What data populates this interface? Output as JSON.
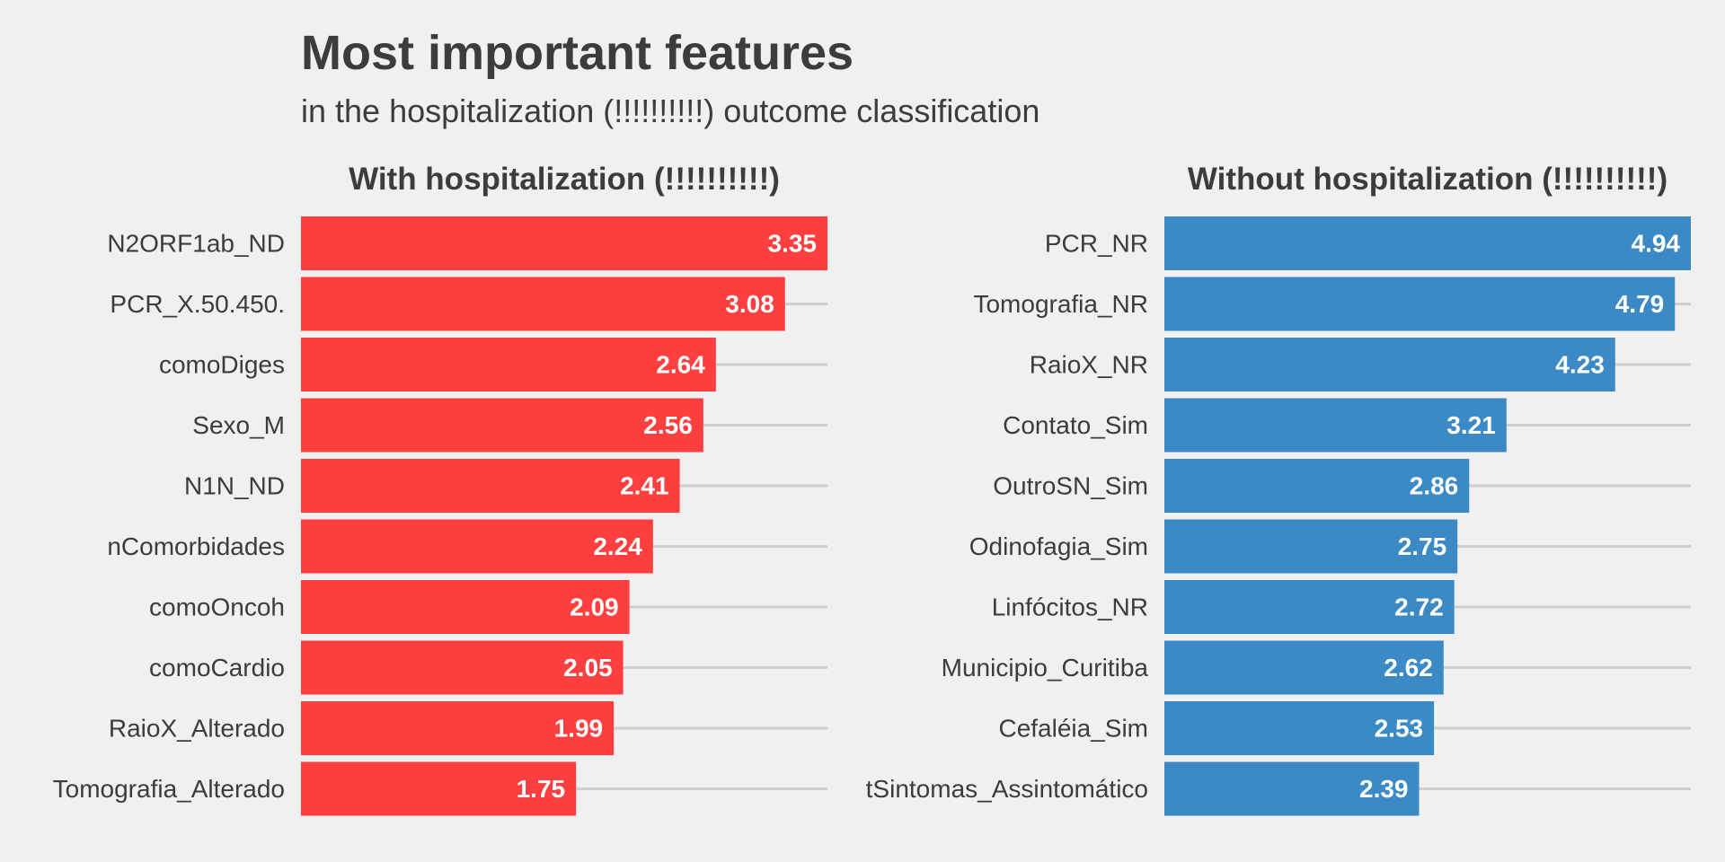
{
  "title": "Most important features",
  "subtitle": "in the hospitalization (!!!!!!!!!!) outcome classification",
  "colors": {
    "background": "#f0f0f0",
    "with_hospitalization": "#fd3f3f",
    "without_hospitalization": "#3b8ac6",
    "text": "#3c3c3c",
    "value_label": "#ffffff",
    "grid": "#cfcfcf"
  },
  "chart_data": [
    {
      "type": "bar",
      "orientation": "horizontal",
      "facet_title": "With hospitalization (!!!!!!!!!!)",
      "color": "#fd3f3f",
      "grid": true,
      "xlim": [
        0,
        3.35
      ],
      "categories": [
        "N2ORF1ab_ND",
        "PCR_X.50.450.",
        "comoDiges",
        "Sexo_M",
        "N1N_ND",
        "nComorbidades",
        "comoOncoh",
        "comoCardio",
        "RaioX_Alterado",
        "Tomografia_Alterado"
      ],
      "values": [
        3.35,
        3.08,
        2.64,
        2.56,
        2.41,
        2.24,
        2.09,
        2.05,
        1.99,
        1.75
      ],
      "value_labels": [
        "3.35",
        "3.08",
        "2.64",
        "2.56",
        "2.41",
        "2.24",
        "2.09",
        "2.05",
        "1.99",
        "1.75"
      ]
    },
    {
      "type": "bar",
      "orientation": "horizontal",
      "facet_title": "Without hospitalization (!!!!!!!!!!)",
      "color": "#3b8ac6",
      "grid": true,
      "xlim": [
        0,
        4.94
      ],
      "categories": [
        "PCR_NR",
        "Tomografia_NR",
        "RaioX_NR",
        "Contato_Sim",
        "OutroSN_Sim",
        "Odinofagia_Sim",
        "Linfócitos_NR",
        "Municipio_Curitiba",
        "Cefaléia_Sim",
        "tSintomas_Assintomático"
      ],
      "values": [
        4.94,
        4.79,
        4.23,
        3.21,
        2.86,
        2.75,
        2.72,
        2.62,
        2.53,
        2.39
      ],
      "value_labels": [
        "4.94",
        "4.79",
        "4.23",
        "3.21",
        "2.86",
        "2.75",
        "2.72",
        "2.62",
        "2.53",
        "2.39"
      ]
    }
  ]
}
